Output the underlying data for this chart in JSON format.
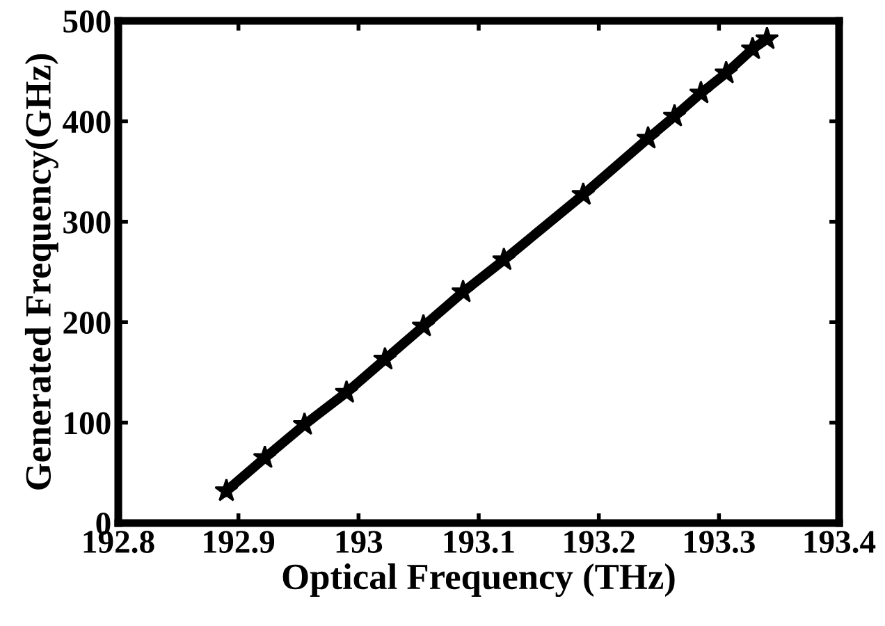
{
  "chart_data": {
    "type": "line",
    "xlabel": "Optical Frequency (THz)",
    "ylabel": "Generated Frequency(GHz)",
    "x": [
      192.89,
      192.922,
      192.955,
      192.99,
      193.022,
      193.054,
      193.087,
      193.121,
      193.187,
      193.241,
      193.263,
      193.285,
      193.306,
      193.328,
      193.34
    ],
    "series": [
      {
        "color": "#000000",
        "values": [
          32,
          65,
          98,
          130,
          163,
          196,
          230,
          262,
          327,
          383,
          405,
          428,
          448,
          472,
          482
        ]
      }
    ],
    "marker": "star",
    "line_style": "solid",
    "grid": false,
    "legend": false,
    "xlim": [
      192.8,
      193.4
    ],
    "xticks": [
      192.8,
      192.9,
      193,
      193.1,
      193.2,
      193.3,
      193.4
    ],
    "ylim": [
      0,
      500
    ],
    "yticks": [
      0,
      100,
      200,
      300,
      400,
      500
    ]
  }
}
